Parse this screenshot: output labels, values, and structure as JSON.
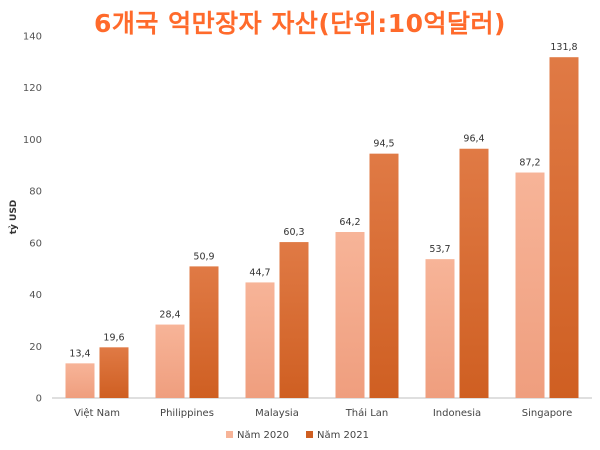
{
  "title": "6개국 억만장자 자산(단위:10억달러)",
  "colors": {
    "title": "#ff6a2b",
    "series_2020_top": "#f7b498",
    "series_2020_bottom": "#ef9e7e",
    "series_2021_top": "#e07a45",
    "series_2021_bottom": "#cf5f22",
    "gridline": "#e5e5e5",
    "axis": "#bfbfbf"
  },
  "chart_data": {
    "type": "bar",
    "title": "6개국 억만장자 자산(단위:10억달러)",
    "ylabel": "tỷ USD",
    "xlabel": "",
    "ylim": [
      0,
      140
    ],
    "yticks": [
      "0",
      "20",
      "40",
      "60",
      "80",
      "100",
      "120",
      "140"
    ],
    "ytick_values": [
      0,
      20,
      40,
      60,
      80,
      100,
      120,
      140
    ],
    "grid": false,
    "legend_position": "bottom",
    "categories": [
      "Việt Nam",
      "Philippines",
      "Malaysia",
      "Thái Lan",
      "Indonesia",
      "Singapore"
    ],
    "series": [
      {
        "name": "Năm 2020",
        "values": [
          13.4,
          28.4,
          44.7,
          64.2,
          53.7,
          87.2
        ],
        "labels": [
          "13,4",
          "28,4",
          "44,7",
          "64,2",
          "53,7",
          "87,2"
        ]
      },
      {
        "name": "Năm 2021",
        "values": [
          19.6,
          50.9,
          60.3,
          94.5,
          96.4,
          131.8
        ],
        "labels": [
          "19,6",
          "50,9",
          "60,3",
          "94,5",
          "96,4",
          "131,8"
        ]
      }
    ]
  }
}
